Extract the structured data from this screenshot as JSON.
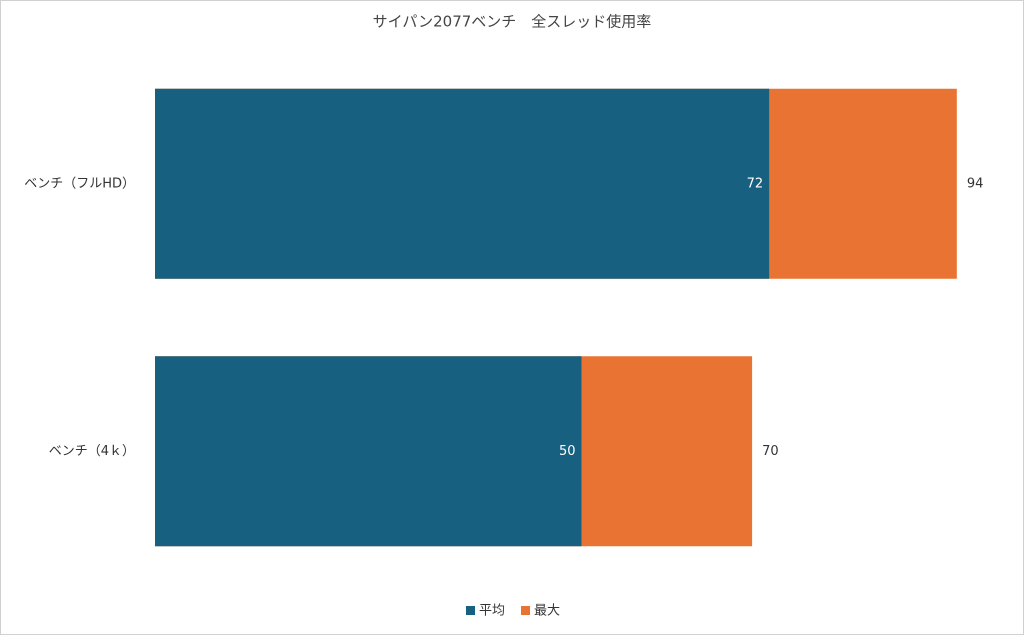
{
  "chart_data": {
    "type": "hbar-overlap",
    "title": "サイパン2077ベンチ　全スレッド使用率",
    "categories": [
      "ベンチ（フルHD）",
      "ベンチ（4ｋ）"
    ],
    "series": [
      {
        "name": "最大",
        "color": "#e87333",
        "values": [
          94,
          70
        ]
      },
      {
        "name": "平均",
        "color": "#17607f",
        "values": [
          72,
          50
        ]
      }
    ],
    "xlim": [
      0,
      100
    ],
    "legend": "bottom"
  }
}
